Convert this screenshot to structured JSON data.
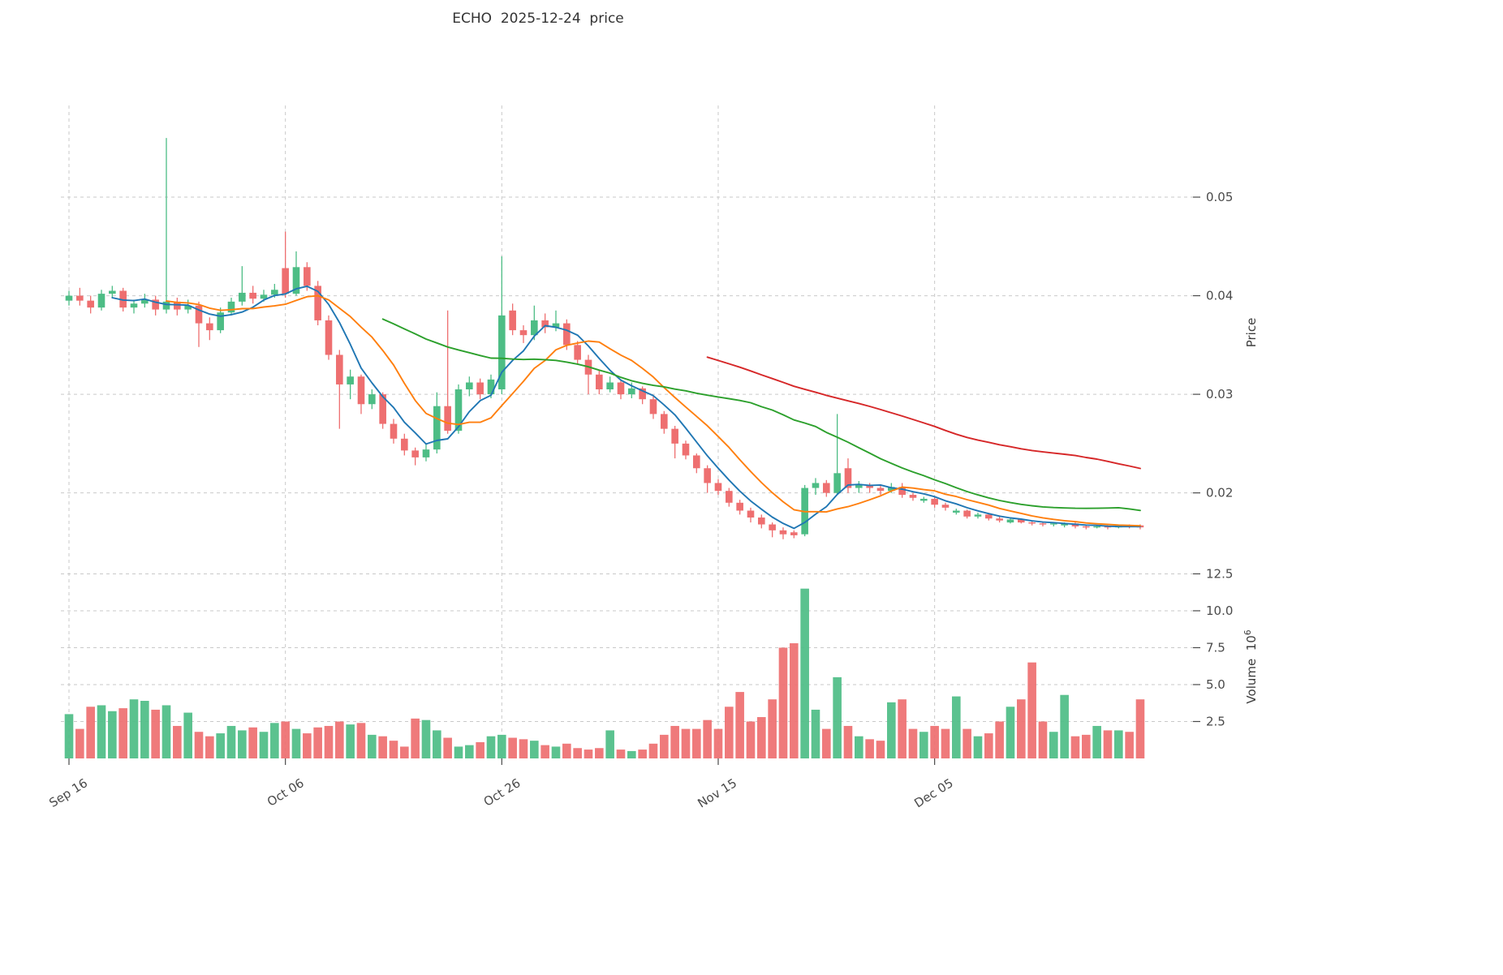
{
  "title": "ECHO  2025-12-24  price",
  "axes": {
    "price_label": "Price",
    "volume_label": "Volume",
    "volume_unit_base": "10",
    "volume_unit_exponent": "6",
    "price_ticks": [
      "0.02",
      "0.03",
      "0.04",
      "0.05"
    ],
    "volume_ticks": [
      "2.5",
      "5.0",
      "7.5",
      "10.0",
      "12.5"
    ],
    "x_ticks": [
      {
        "label": "Sep 16",
        "date": "2025-09-16"
      },
      {
        "label": "Oct 06",
        "date": "2025-10-06"
      },
      {
        "label": "Oct 26",
        "date": "2025-10-26"
      },
      {
        "label": "Nov 15",
        "date": "2025-11-15"
      },
      {
        "label": "Dec 05",
        "date": "2025-12-05"
      }
    ]
  },
  "colors": {
    "up": "#4dbd85",
    "down": "#ee6f70",
    "ma5": "#2077b4",
    "ma10": "#ff7f0e",
    "ma30": "#2ca02c",
    "ma60": "#d62728",
    "grid": "#c9c9c9",
    "text": "#4a4a4a"
  },
  "chart_data": {
    "type": "candlestick",
    "title": "ECHO  2025-12-24  price",
    "ylabel": "Price",
    "y2label": "Volume 10^6",
    "legend_position": "none",
    "grid": "dashed",
    "price_ylim": [
      0.0124,
      0.0593
    ],
    "volume_ylim": [
      0,
      12.8
    ],
    "moving_averages": [
      {
        "name": "MA5",
        "window": 5,
        "color": "ma5"
      },
      {
        "name": "MA10",
        "window": 10,
        "color": "ma10"
      },
      {
        "name": "MA30",
        "window": 30,
        "color": "ma30"
      },
      {
        "name": "MA60",
        "window": 60,
        "color": "ma60"
      }
    ],
    "dates": [
      "2025-09-16",
      "2025-09-17",
      "2025-09-18",
      "2025-09-19",
      "2025-09-20",
      "2025-09-21",
      "2025-09-22",
      "2025-09-23",
      "2025-09-24",
      "2025-09-25",
      "2025-09-26",
      "2025-09-27",
      "2025-09-28",
      "2025-09-29",
      "2025-09-30",
      "2025-10-01",
      "2025-10-02",
      "2025-10-03",
      "2025-10-04",
      "2025-10-05",
      "2025-10-06",
      "2025-10-07",
      "2025-10-08",
      "2025-10-09",
      "2025-10-10",
      "2025-10-11",
      "2025-10-12",
      "2025-10-13",
      "2025-10-14",
      "2025-10-15",
      "2025-10-16",
      "2025-10-17",
      "2025-10-18",
      "2025-10-19",
      "2025-10-20",
      "2025-10-21",
      "2025-10-22",
      "2025-10-23",
      "2025-10-24",
      "2025-10-25",
      "2025-10-26",
      "2025-10-27",
      "2025-10-28",
      "2025-10-29",
      "2025-10-30",
      "2025-10-31",
      "2025-11-01",
      "2025-11-02",
      "2025-11-03",
      "2025-11-04",
      "2025-11-05",
      "2025-11-06",
      "2025-11-07",
      "2025-11-08",
      "2025-11-09",
      "2025-11-10",
      "2025-11-11",
      "2025-11-12",
      "2025-11-13",
      "2025-11-14",
      "2025-11-15",
      "2025-11-16",
      "2025-11-17",
      "2025-11-18",
      "2025-11-19",
      "2025-11-20",
      "2025-11-21",
      "2025-11-22",
      "2025-11-23",
      "2025-11-24",
      "2025-11-25",
      "2025-11-26",
      "2025-11-27",
      "2025-11-28",
      "2025-11-29",
      "2025-11-30",
      "2025-12-01",
      "2025-12-02",
      "2025-12-03",
      "2025-12-04",
      "2025-12-05",
      "2025-12-06",
      "2025-12-07",
      "2025-12-08",
      "2025-12-09",
      "2025-12-10",
      "2025-12-11",
      "2025-12-12",
      "2025-12-13",
      "2025-12-14",
      "2025-12-15",
      "2025-12-16",
      "2025-12-17",
      "2025-12-18",
      "2025-12-19",
      "2025-12-20",
      "2025-12-21",
      "2025-12-22",
      "2025-12-23",
      "2025-12-24"
    ],
    "open": [
      0.0395,
      0.04,
      0.0395,
      0.0388,
      0.0402,
      0.0405,
      0.0388,
      0.0392,
      0.0396,
      0.0386,
      0.0394,
      0.0386,
      0.039,
      0.0372,
      0.0365,
      0.0383,
      0.0394,
      0.0403,
      0.0397,
      0.0401,
      0.0428,
      0.0402,
      0.0429,
      0.041,
      0.0375,
      0.034,
      0.031,
      0.0318,
      0.029,
      0.03,
      0.027,
      0.0255,
      0.0243,
      0.0236,
      0.0244,
      0.0288,
      0.0263,
      0.0305,
      0.0312,
      0.03,
      0.0305,
      0.0385,
      0.0365,
      0.036,
      0.0375,
      0.0368,
      0.0372,
      0.035,
      0.0335,
      0.032,
      0.0305,
      0.0312,
      0.03,
      0.0306,
      0.0295,
      0.028,
      0.0265,
      0.025,
      0.0238,
      0.0225,
      0.021,
      0.0202,
      0.019,
      0.0182,
      0.0175,
      0.0168,
      0.0162,
      0.016,
      0.0158,
      0.0205,
      0.021,
      0.02,
      0.0225,
      0.0205,
      0.0208,
      0.0205,
      0.0202,
      0.0206,
      0.0198,
      0.0192,
      0.0194,
      0.0188,
      0.018,
      0.0182,
      0.0176,
      0.0178,
      0.0174,
      0.017,
      0.0173,
      0.017,
      0.0169,
      0.0168,
      0.0167,
      0.0169,
      0.0166,
      0.0165,
      0.0166,
      0.0165,
      0.0167,
      0.0167
    ],
    "high": [
      0.0405,
      0.0408,
      0.04,
      0.0406,
      0.041,
      0.0408,
      0.0396,
      0.0402,
      0.04,
      0.056,
      0.0398,
      0.0396,
      0.0394,
      0.0378,
      0.0388,
      0.0398,
      0.043,
      0.041,
      0.0406,
      0.0412,
      0.0465,
      0.0445,
      0.0434,
      0.0415,
      0.038,
      0.0345,
      0.0325,
      0.032,
      0.0305,
      0.0302,
      0.0275,
      0.026,
      0.0246,
      0.025,
      0.0302,
      0.0385,
      0.031,
      0.0318,
      0.0316,
      0.032,
      0.044,
      0.0392,
      0.037,
      0.039,
      0.0382,
      0.0385,
      0.0376,
      0.0354,
      0.034,
      0.0324,
      0.0318,
      0.0315,
      0.0312,
      0.0308,
      0.0298,
      0.0283,
      0.0268,
      0.0253,
      0.024,
      0.0228,
      0.0214,
      0.0205,
      0.0193,
      0.0185,
      0.0178,
      0.017,
      0.0165,
      0.0162,
      0.0208,
      0.0215,
      0.0213,
      0.028,
      0.0235,
      0.0212,
      0.021,
      0.0208,
      0.021,
      0.021,
      0.02,
      0.0196,
      0.0196,
      0.019,
      0.0184,
      0.0183,
      0.018,
      0.0179,
      0.0176,
      0.0174,
      0.0174,
      0.0172,
      0.0171,
      0.017,
      0.017,
      0.017,
      0.0167,
      0.0167,
      0.0167,
      0.0168,
      0.0168,
      0.0168
    ],
    "low": [
      0.039,
      0.039,
      0.0382,
      0.0385,
      0.0398,
      0.0384,
      0.0382,
      0.0388,
      0.038,
      0.0382,
      0.038,
      0.0382,
      0.0348,
      0.0355,
      0.0362,
      0.038,
      0.039,
      0.0392,
      0.0394,
      0.0398,
      0.0398,
      0.04,
      0.0405,
      0.037,
      0.0335,
      0.0265,
      0.0295,
      0.028,
      0.0285,
      0.0265,
      0.025,
      0.0238,
      0.0228,
      0.0232,
      0.024,
      0.026,
      0.026,
      0.0298,
      0.0295,
      0.0296,
      0.03,
      0.036,
      0.0352,
      0.0355,
      0.0362,
      0.0364,
      0.0345,
      0.033,
      0.03,
      0.03,
      0.0302,
      0.0295,
      0.0296,
      0.029,
      0.0275,
      0.026,
      0.0235,
      0.0234,
      0.022,
      0.02,
      0.0198,
      0.0186,
      0.0178,
      0.017,
      0.0164,
      0.0155,
      0.0153,
      0.0154,
      0.0156,
      0.0198,
      0.0196,
      0.0198,
      0.02,
      0.02,
      0.02,
      0.0198,
      0.02,
      0.0195,
      0.0192,
      0.019,
      0.0185,
      0.0182,
      0.0178,
      0.0174,
      0.0174,
      0.0172,
      0.017,
      0.0169,
      0.0169,
      0.0167,
      0.0166,
      0.0166,
      0.0165,
      0.0164,
      0.0163,
      0.0164,
      0.0163,
      0.0164,
      0.0164,
      0.0163
    ],
    "close": [
      0.04,
      0.0395,
      0.0388,
      0.0402,
      0.0405,
      0.0388,
      0.0392,
      0.0396,
      0.0386,
      0.0394,
      0.0386,
      0.039,
      0.0372,
      0.0365,
      0.0383,
      0.0394,
      0.0403,
      0.0397,
      0.0401,
      0.0406,
      0.0402,
      0.0429,
      0.041,
      0.0375,
      0.034,
      0.031,
      0.0318,
      0.029,
      0.03,
      0.027,
      0.0255,
      0.0243,
      0.0236,
      0.0244,
      0.0288,
      0.0263,
      0.0305,
      0.0312,
      0.03,
      0.0315,
      0.038,
      0.0365,
      0.036,
      0.0375,
      0.0368,
      0.0372,
      0.035,
      0.0335,
      0.032,
      0.0305,
      0.0312,
      0.03,
      0.0306,
      0.0295,
      0.028,
      0.0265,
      0.025,
      0.0238,
      0.0225,
      0.021,
      0.0202,
      0.019,
      0.0182,
      0.0175,
      0.0168,
      0.0162,
      0.0158,
      0.0157,
      0.0205,
      0.021,
      0.02,
      0.022,
      0.0205,
      0.0208,
      0.0205,
      0.0202,
      0.0206,
      0.0198,
      0.0195,
      0.0194,
      0.0188,
      0.0185,
      0.0182,
      0.0176,
      0.0178,
      0.0174,
      0.0172,
      0.0173,
      0.017,
      0.0169,
      0.0168,
      0.0169,
      0.0169,
      0.0166,
      0.0165,
      0.0166,
      0.0165,
      0.0167,
      0.0166,
      0.0165
    ],
    "volume_millions": [
      3.0,
      2.0,
      3.5,
      3.6,
      3.2,
      3.4,
      4.0,
      3.9,
      3.3,
      3.6,
      2.2,
      3.1,
      1.8,
      1.5,
      1.7,
      2.2,
      1.9,
      2.1,
      1.8,
      2.4,
      2.5,
      2.0,
      1.7,
      2.1,
      2.2,
      2.5,
      2.3,
      2.4,
      1.6,
      1.5,
      1.2,
      0.8,
      2.7,
      2.6,
      1.9,
      1.4,
      0.8,
      0.9,
      1.1,
      1.5,
      1.6,
      1.4,
      1.3,
      1.2,
      0.9,
      0.8,
      1.0,
      0.7,
      0.6,
      0.7,
      1.9,
      0.6,
      0.5,
      0.6,
      1.0,
      1.6,
      2.2,
      2.0,
      2.0,
      2.6,
      2.0,
      3.5,
      4.5,
      2.5,
      2.8,
      4.0,
      7.5,
      7.8,
      11.5,
      3.3,
      2.0,
      5.5,
      2.2,
      1.5,
      1.3,
      1.2,
      3.8,
      4.0,
      2.0,
      1.8,
      2.2,
      2.0,
      4.2,
      2.0,
      1.5,
      1.7,
      2.5,
      3.5,
      4.0,
      6.5,
      2.5,
      1.8,
      4.3,
      1.5,
      1.6,
      2.2,
      1.9,
      1.9,
      1.8,
      4.0
    ]
  }
}
